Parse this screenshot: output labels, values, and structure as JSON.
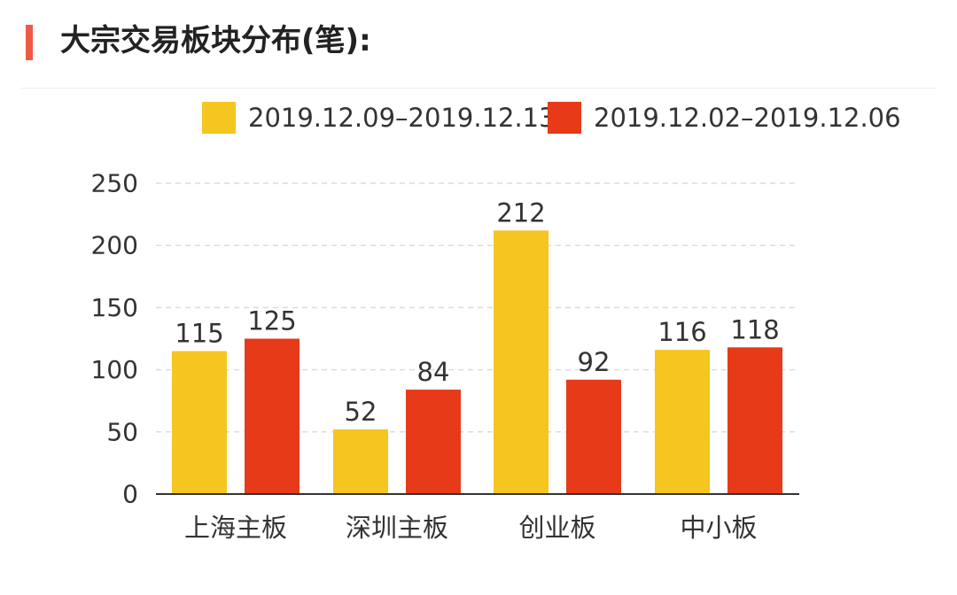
{
  "header": {
    "title": "大宗交易板块分布(笔):",
    "accent_color": "#f05a44"
  },
  "chart_data": {
    "type": "bar",
    "title": "大宗交易板块分布(笔):",
    "categories": [
      "上海主板",
      "深圳主板",
      "创业板",
      "中小板"
    ],
    "series": [
      {
        "name": "2019.12.09–2019.12.13",
        "color": "#f5c520",
        "values": [
          115,
          52,
          212,
          116
        ]
      },
      {
        "name": "2019.12.02–2019.12.06",
        "color": "#e63a19",
        "values": [
          125,
          84,
          92,
          118
        ]
      }
    ],
    "yticks": [
      0,
      50,
      100,
      150,
      200,
      250
    ],
    "ylim": [
      0,
      250
    ],
    "xlabel": "",
    "ylabel": "",
    "grid": true,
    "legend": "top"
  }
}
